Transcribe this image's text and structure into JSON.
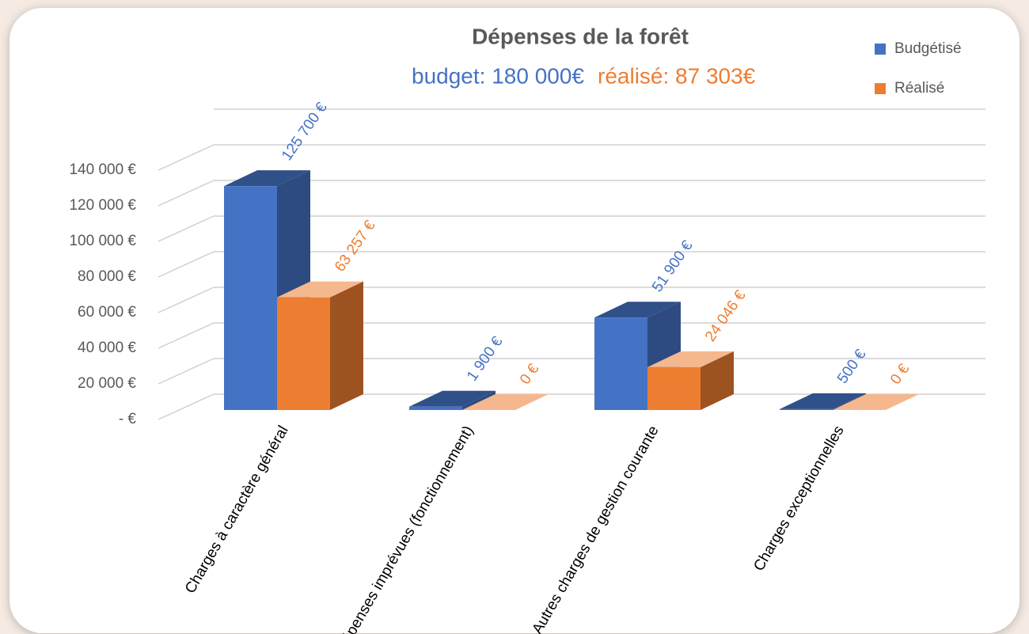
{
  "chart_data": {
    "type": "bar3d",
    "title": "Dépenses de la forêt",
    "subtitle": [
      {
        "text": "budget: 180 000€",
        "color": "#4472c4"
      },
      {
        "text": "réalisé: 87 303€",
        "color": "#ed7d31"
      }
    ],
    "categories": [
      "Charges à caractère général",
      "Dépenses imprévues (fonctionnement)",
      "Autres charges de gestion courante",
      "Charges exceptionnelles"
    ],
    "series": [
      {
        "name": "Budgétisé",
        "color": "#4472c4",
        "values": [
          125700,
          1900,
          51900,
          500
        ],
        "value_labels": [
          "125 700 €",
          "1 900 €",
          "51 900 €",
          "500 €"
        ]
      },
      {
        "name": "Réalisé",
        "color": "#ed7d31",
        "values": [
          63257,
          0,
          24046,
          0
        ],
        "value_labels": [
          "63 257 €",
          "0 €",
          "24 046 €",
          "0 €"
        ]
      }
    ],
    "ylim": [
      0,
      160000
    ],
    "yticks": [
      {
        "value": 0,
        "label": "- €"
      },
      {
        "value": 20000,
        "label": "20 000 €"
      },
      {
        "value": 40000,
        "label": "40 000 €"
      },
      {
        "value": 60000,
        "label": "60 000 €"
      },
      {
        "value": 80000,
        "label": "80 000 €"
      },
      {
        "value": 100000,
        "label": "100 000 €"
      },
      {
        "value": 120000,
        "label": "120 000 €"
      },
      {
        "value": 140000,
        "label": "140 000 €"
      }
    ],
    "grid": true,
    "legend": "top-right"
  }
}
